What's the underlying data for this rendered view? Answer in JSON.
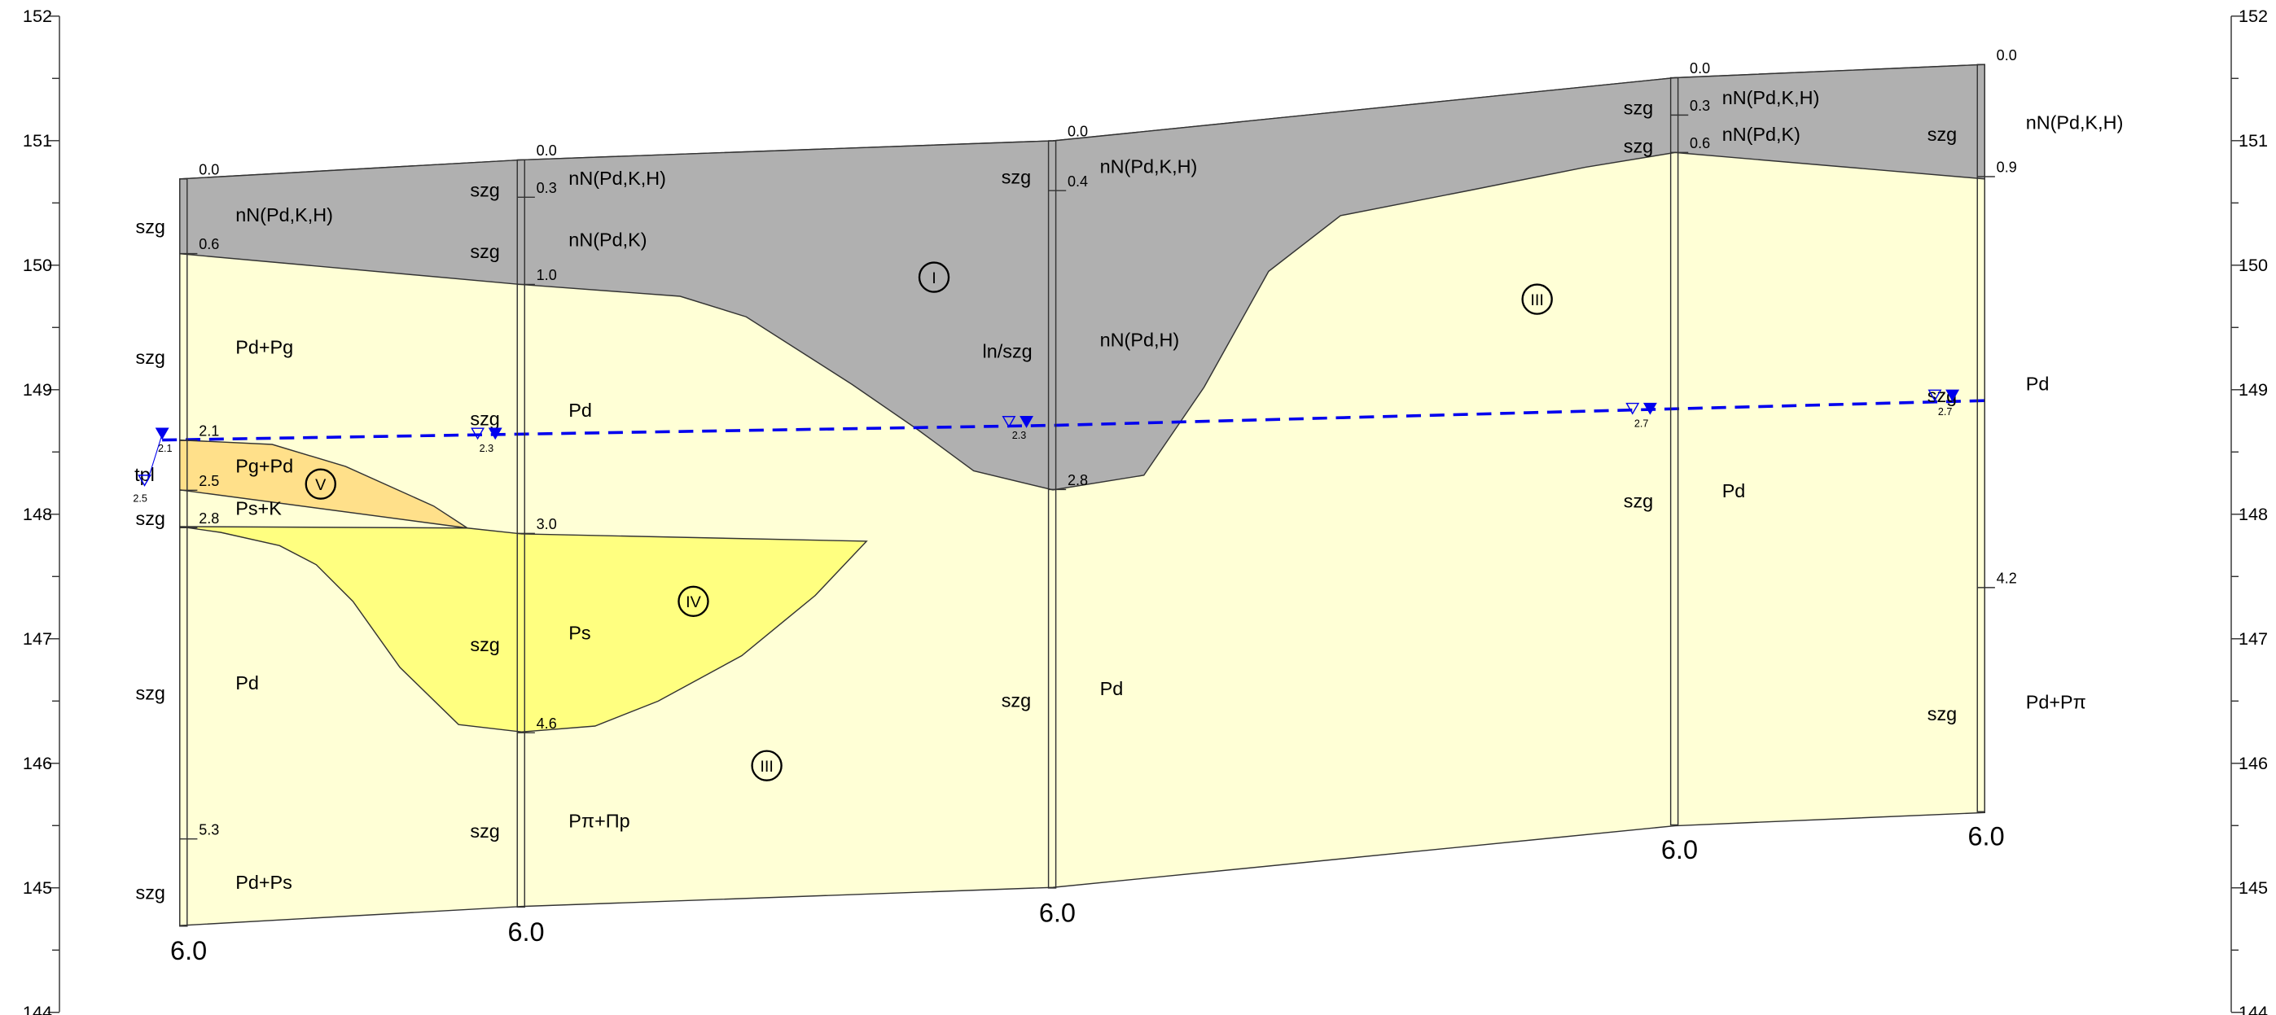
{
  "elevation_ticks": [
    152,
    151,
    150,
    149,
    148,
    147,
    146,
    145,
    144
  ],
  "boreholes": [
    {
      "depths": [
        "0.0",
        "0.6",
        "2.1",
        "2.5",
        "2.8",
        "5.3"
      ],
      "bottom": "6.0",
      "labels": [
        "szg",
        "nN(Pd,K,H)",
        "szg",
        "Pd+Pg",
        "tpl",
        "Pg+Pd",
        "szg",
        "Ps+K",
        "szg",
        "Pd",
        "szg",
        "Pd+Ps"
      ],
      "water": [
        "2.1",
        "2.5"
      ]
    },
    {
      "depths": [
        "0.0",
        "0.3",
        "1.0",
        "3.0",
        "4.6"
      ],
      "bottom": "6.0",
      "labels": [
        "szg",
        "nN(Pd,K,H)",
        "szg",
        "nN(Pd,K)",
        "szg",
        "Pd",
        "szg",
        "Ps",
        "szg",
        "Pπ+Πp"
      ],
      "water": [
        "2.3"
      ]
    },
    {
      "depths": [
        "0.0",
        "0.4",
        "2.8"
      ],
      "bottom": "6.0",
      "labels": [
        "szg",
        "nN(Pd,K,H)",
        "ln/szg",
        "nN(Pd,H)",
        "szg",
        "Pd"
      ],
      "water": [
        "2.3"
      ]
    },
    {
      "depths": [
        "0.0",
        "0.3",
        "0.6"
      ],
      "bottom": "6.0",
      "labels": [
        "szg",
        "nN(Pd,K,H)",
        "szg",
        "nN(Pd,K)",
        "szg",
        "Pd"
      ],
      "water": [
        "2.7"
      ]
    },
    {
      "depths": [
        "0.0",
        "0.9",
        "4.2"
      ],
      "bottom": "6.0",
      "labels": [
        "szg",
        "nN(Pd,K,H)",
        "szg",
        "Pd",
        "szg",
        "Pd+Pπ"
      ],
      "water": [
        "2.7"
      ]
    }
  ],
  "zones": [
    "I",
    "III",
    "V",
    "IV",
    "III"
  ]
}
